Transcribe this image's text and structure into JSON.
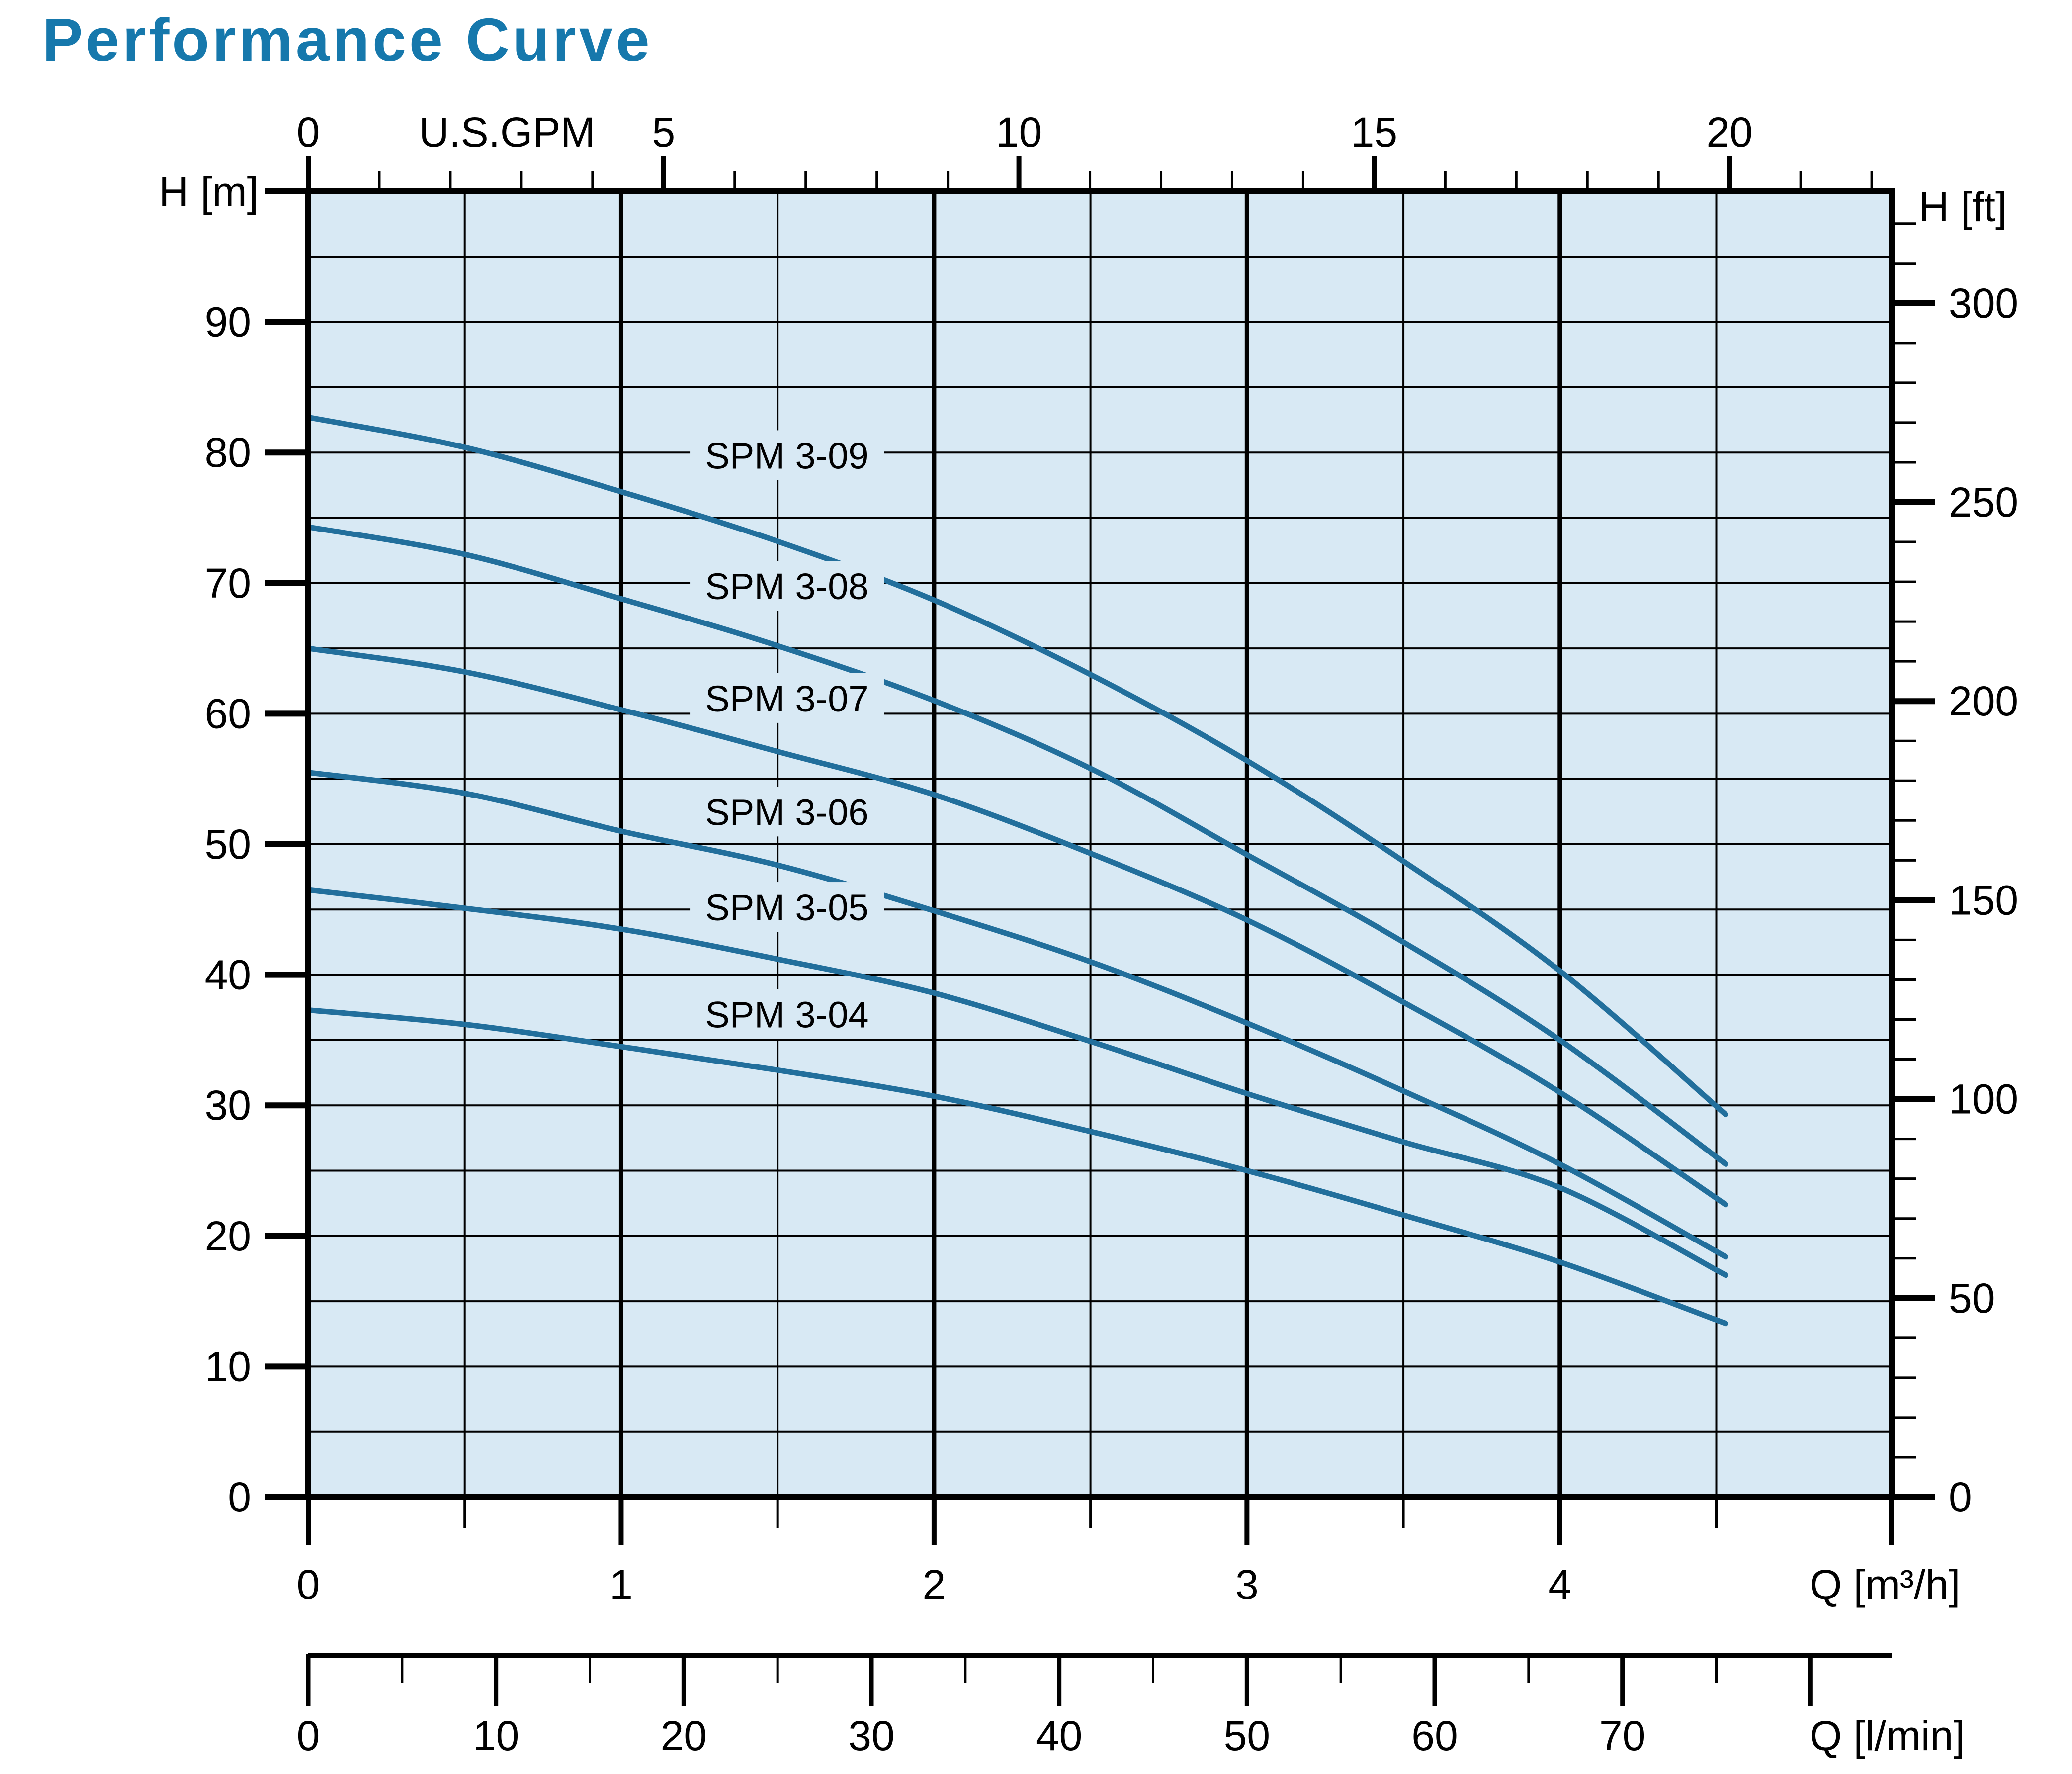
{
  "title": {
    "text": "Performance Curve"
  },
  "colors": {
    "title_blue": "#1678ac",
    "curve_blue": "#226f9c",
    "plot_bg": "#d8e9f4",
    "axis_black": "#000000"
  },
  "chart_data": {
    "type": "line",
    "title": "Performance Curve",
    "grid": "on",
    "legend_position": "inline-labels",
    "axes": {
      "left": {
        "label": "H [m]",
        "min": 0,
        "max": 100,
        "labeled_ticks": [
          0,
          10,
          20,
          30,
          40,
          50,
          60,
          70,
          80,
          90
        ],
        "grid_step_m": 5
      },
      "right": {
        "label": "H [ft]",
        "labeled_ticks": [
          0,
          50,
          100,
          150,
          200,
          250,
          300
        ],
        "minor_tick_step_ft": 10,
        "max_tick_ft": 320,
        "ft_per_m": 3.28084
      },
      "bottom_primary": {
        "label": "Q [m³/h]",
        "min": 0,
        "max": 5.06,
        "labeled_ticks": [
          0,
          1,
          2,
          3,
          4
        ],
        "minor_tick_step": 0.5
      },
      "top": {
        "label": "U.S.GPM",
        "labeled_ticks": [
          0,
          5,
          10,
          15,
          20
        ],
        "minor_tick_step_gpm": 1,
        "max_tick_gpm": 22,
        "m3h_per_gpm": 0.22712
      },
      "bottom_secondary": {
        "label": "Q [l/min]",
        "labeled_ticks": [
          0,
          10,
          20,
          30,
          40,
          50,
          60,
          70
        ],
        "minor_tick_step_lmin": 5,
        "max_tick_lmin": 80,
        "m3h_per_lmin": 0.06
      }
    },
    "series": [
      {
        "name": "SPM 3-09",
        "label_q": 1.53,
        "label_h": 79.8,
        "points": [
          [
            0,
            82.7
          ],
          [
            0.5,
            80.4
          ],
          [
            1,
            77.0
          ],
          [
            1.5,
            73.2
          ],
          [
            2,
            68.7
          ],
          [
            2.5,
            63.0
          ],
          [
            3,
            56.4
          ],
          [
            3.5,
            48.7
          ],
          [
            4,
            40.3
          ],
          [
            4.53,
            29.3
          ]
        ]
      },
      {
        "name": "SPM 3-08",
        "label_q": 1.53,
        "label_h": 69.8,
        "points": [
          [
            0,
            74.3
          ],
          [
            0.5,
            72.2
          ],
          [
            1,
            68.8
          ],
          [
            1.5,
            65.2
          ],
          [
            2,
            61.0
          ],
          [
            2.5,
            55.8
          ],
          [
            3,
            49.2
          ],
          [
            3.5,
            42.5
          ],
          [
            4,
            35.0
          ],
          [
            4.53,
            25.5
          ]
        ]
      },
      {
        "name": "SPM 3-07",
        "label_q": 1.53,
        "label_h": 61.2,
        "points": [
          [
            0,
            65.0
          ],
          [
            0.5,
            63.2
          ],
          [
            1,
            60.3
          ],
          [
            1.5,
            57.1
          ],
          [
            2,
            53.8
          ],
          [
            2.5,
            49.3
          ],
          [
            3,
            44.2
          ],
          [
            3.5,
            37.9
          ],
          [
            4,
            31.0
          ],
          [
            4.53,
            22.4
          ]
        ]
      },
      {
        "name": "SPM 3-06",
        "label_q": 1.53,
        "label_h": 52.5,
        "points": [
          [
            0,
            55.5
          ],
          [
            0.5,
            53.9
          ],
          [
            1,
            51.0
          ],
          [
            1.5,
            48.4
          ],
          [
            2,
            44.9
          ],
          [
            2.5,
            41.0
          ],
          [
            3,
            36.3
          ],
          [
            3.5,
            31.1
          ],
          [
            4,
            25.5
          ],
          [
            4.53,
            18.4
          ]
        ]
      },
      {
        "name": "SPM 3-05",
        "label_q": 1.53,
        "label_h": 45.2,
        "points": [
          [
            0,
            46.5
          ],
          [
            0.5,
            45.1
          ],
          [
            1,
            43.5
          ],
          [
            1.5,
            41.2
          ],
          [
            2,
            38.6
          ],
          [
            2.5,
            34.9
          ],
          [
            3,
            30.9
          ],
          [
            3.5,
            27.2
          ],
          [
            4,
            23.7
          ],
          [
            4.53,
            17.0
          ]
        ]
      },
      {
        "name": "SPM 3-04",
        "label_q": 1.53,
        "label_h": 37.0,
        "points": [
          [
            0,
            37.3
          ],
          [
            0.5,
            36.2
          ],
          [
            1,
            34.5
          ],
          [
            1.5,
            32.7
          ],
          [
            2,
            30.7
          ],
          [
            2.5,
            28.0
          ],
          [
            3,
            25.0
          ],
          [
            3.5,
            21.6
          ],
          [
            4,
            18.0
          ],
          [
            4.53,
            13.3
          ]
        ]
      }
    ]
  }
}
